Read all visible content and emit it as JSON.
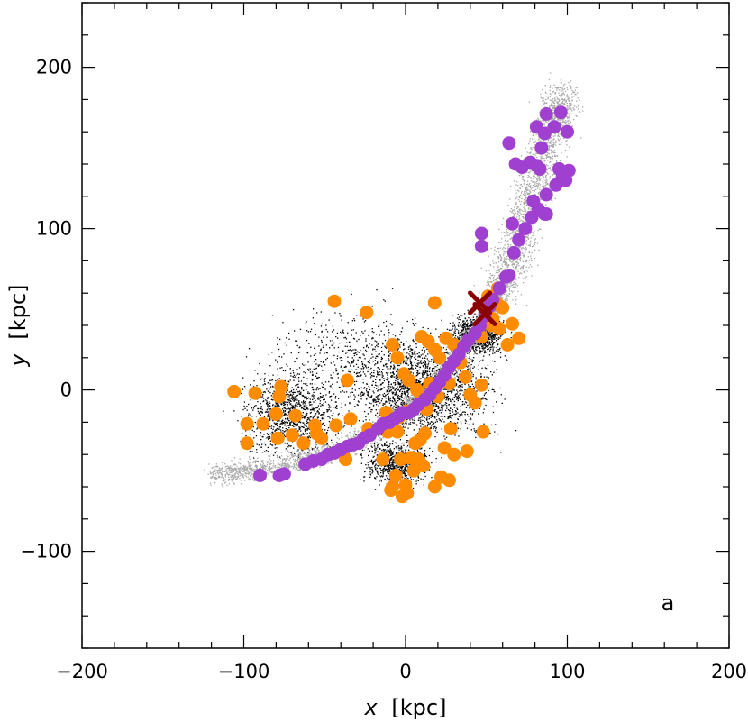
{
  "chart_data": {
    "type": "scatter",
    "title": "",
    "xlabel_var": "x",
    "xlabel_unit": "[kpc]",
    "ylabel_var": "y",
    "ylabel_unit": "[kpc]",
    "xlim": [
      -200,
      200
    ],
    "ylim": [
      -160,
      240
    ],
    "x_ticks": [
      -200,
      -100,
      0,
      100,
      200
    ],
    "y_ticks": [
      -100,
      0,
      100,
      200
    ],
    "x_tick_labels": [
      "−200",
      "−100",
      "0",
      "100",
      "200"
    ],
    "y_tick_labels": [
      "−100",
      "0",
      "100",
      "200"
    ],
    "panel_label": "a",
    "grid": false,
    "colors": {
      "black_particles": "#000000",
      "gray_particles": "#a8a8a8",
      "orange": "#ff8c00",
      "purple": "#a040d0",
      "cross": "#8b0000"
    },
    "series": [
      {
        "name": "orange",
        "marker": "circle",
        "points": [
          [
            -106,
            -1
          ],
          [
            -93,
            -2
          ],
          [
            -77,
            2
          ],
          [
            -78,
            -4
          ],
          [
            -98,
            -21
          ],
          [
            -88,
            -21
          ],
          [
            -80,
            -15
          ],
          [
            -98,
            -33
          ],
          [
            -79,
            -30
          ],
          [
            -68,
            -16
          ],
          [
            -70,
            -28
          ],
          [
            -56,
            -22
          ],
          [
            -63,
            -33
          ],
          [
            -52,
            -30
          ],
          [
            -55,
            -27
          ],
          [
            -43,
            -22
          ],
          [
            -36,
            6
          ],
          [
            -44,
            -39
          ],
          [
            -37,
            -43
          ],
          [
            -34,
            -18
          ],
          [
            -23,
            -24
          ],
          [
            -44,
            55
          ],
          [
            -24,
            48
          ],
          [
            -8,
            28
          ],
          [
            -5,
            20
          ],
          [
            -1,
            10
          ],
          [
            2,
            6
          ],
          [
            7,
            0
          ],
          [
            10,
            -5
          ],
          [
            13,
            -12
          ],
          [
            10,
            33
          ],
          [
            14,
            30
          ],
          [
            18,
            25
          ],
          [
            21,
            20
          ],
          [
            18,
            54
          ],
          [
            25,
            32
          ],
          [
            30,
            28
          ],
          [
            34,
            17
          ],
          [
            37,
            8
          ],
          [
            40,
            -3
          ],
          [
            43,
            -8
          ],
          [
            47,
            3
          ],
          [
            48,
            -26
          ],
          [
            28,
            -24
          ],
          [
            24,
            -36
          ],
          [
            30,
            -40
          ],
          [
            38,
            -38
          ],
          [
            18,
            -60
          ],
          [
            22,
            -54
          ],
          [
            27,
            -56
          ],
          [
            8,
            -43
          ],
          [
            11,
            -47
          ],
          [
            3,
            -42
          ],
          [
            -3,
            -43
          ],
          [
            -6,
            -53
          ],
          [
            -8,
            -60
          ],
          [
            0,
            -59
          ],
          [
            5,
            -50
          ],
          [
            -2,
            -66
          ],
          [
            1,
            -64
          ],
          [
            -9,
            -62
          ],
          [
            -14,
            -43
          ],
          [
            6,
            -33
          ],
          [
            -11,
            -26
          ],
          [
            -4,
            -17
          ],
          [
            1,
            -13
          ],
          [
            -12,
            -14
          ],
          [
            -10,
            -21
          ],
          [
            -5,
            -26
          ],
          [
            12,
            -27
          ],
          [
            9,
            -31
          ],
          [
            20,
            -4
          ],
          [
            15,
            4
          ],
          [
            27,
            4
          ],
          [
            47,
            33
          ],
          [
            54,
            44
          ],
          [
            58,
            38
          ],
          [
            63,
            28
          ],
          [
            66,
            41
          ],
          [
            70,
            32
          ],
          [
            60,
            51
          ],
          [
            53,
            40
          ],
          [
            57,
            53
          ],
          [
            51,
            58
          ],
          [
            57,
            63
          ]
        ]
      },
      {
        "name": "purple",
        "marker": "circle",
        "points": [
          [
            -90,
            -53
          ],
          [
            -75,
            -52
          ],
          [
            -78,
            -53
          ],
          [
            -62,
            -46
          ],
          [
            -57,
            -44
          ],
          [
            -52,
            -43
          ],
          [
            -48,
            -40
          ],
          [
            -44,
            -39
          ],
          [
            -40,
            -37
          ],
          [
            -36,
            -35
          ],
          [
            -33,
            -34
          ],
          [
            -29,
            -33
          ],
          [
            -26,
            -30
          ],
          [
            -22,
            -28
          ],
          [
            -17,
            -24
          ],
          [
            -14,
            -21
          ],
          [
            -10,
            -20
          ],
          [
            -7,
            -18
          ],
          [
            -4,
            -16
          ],
          [
            -2,
            -14
          ],
          [
            2,
            -14
          ],
          [
            5,
            -12
          ],
          [
            8,
            -9
          ],
          [
            12,
            -6
          ],
          [
            15,
            -3
          ],
          [
            18,
            1
          ],
          [
            21,
            5
          ],
          [
            24,
            9
          ],
          [
            27,
            14
          ],
          [
            30,
            18
          ],
          [
            33,
            22
          ],
          [
            36,
            27
          ],
          [
            39,
            31
          ],
          [
            43,
            35
          ],
          [
            46,
            40
          ],
          [
            49,
            46
          ],
          [
            52,
            52
          ],
          [
            54,
            56
          ],
          [
            58,
            63
          ],
          [
            62,
            70
          ],
          [
            64,
            71
          ],
          [
            67,
            85
          ],
          [
            70,
            93
          ],
          [
            66,
            103
          ],
          [
            74,
            100
          ],
          [
            78,
            107
          ],
          [
            82,
            112
          ],
          [
            86,
            109
          ],
          [
            79,
            117
          ],
          [
            87,
            121
          ],
          [
            93,
            127
          ],
          [
            97,
            132
          ],
          [
            101,
            136
          ],
          [
            95,
            137
          ],
          [
            83,
            137
          ],
          [
            77,
            141
          ],
          [
            68,
            140
          ],
          [
            72,
            138
          ],
          [
            81,
            139
          ],
          [
            99,
            130
          ],
          [
            87,
            109
          ],
          [
            47,
            97
          ],
          [
            47,
            89
          ],
          [
            64,
            153
          ],
          [
            84,
            150
          ],
          [
            81,
            163
          ],
          [
            86,
            159
          ],
          [
            92,
            163
          ],
          [
            100,
            160
          ],
          [
            96,
            172
          ],
          [
            87,
            171
          ]
        ]
      },
      {
        "name": "satellite",
        "marker": "x",
        "points": [
          [
            46,
            54
          ],
          [
            49,
            47
          ]
        ]
      }
    ]
  }
}
